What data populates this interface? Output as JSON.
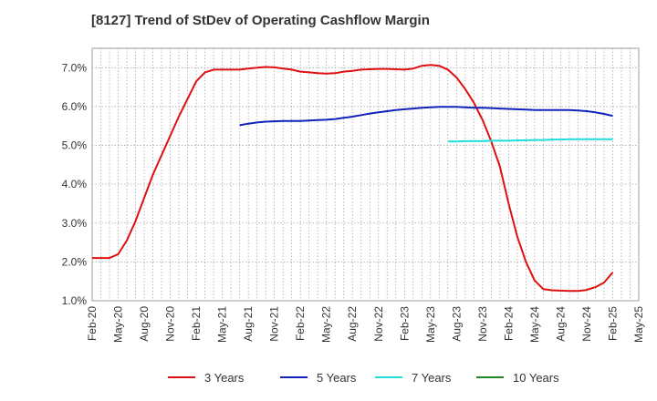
{
  "chart_data": {
    "type": "line",
    "title": "[8127]  Trend of StDev of Operating Cashflow Margin",
    "xlabel": "",
    "ylabel": "",
    "ylim": [
      1.0,
      7.5
    ],
    "yticks": [
      "1.0%",
      "2.0%",
      "3.0%",
      "4.0%",
      "5.0%",
      "6.0%",
      "7.0%"
    ],
    "x_ticks": [
      "Feb-20",
      "May-20",
      "Aug-20",
      "Nov-20",
      "Feb-21",
      "May-21",
      "Aug-21",
      "Nov-21",
      "Feb-22",
      "May-22",
      "Aug-22",
      "Nov-22",
      "Feb-23",
      "May-23",
      "Aug-23",
      "Nov-23",
      "Feb-24",
      "May-24",
      "Aug-24",
      "Nov-24",
      "Feb-25",
      "May-25"
    ],
    "grid": true,
    "legend_position": "bottom",
    "series": [
      {
        "name": "3 Years",
        "color": "#dd1111",
        "points": [
          [
            "Feb-20",
            2.1
          ],
          [
            "Mar-20",
            2.1
          ],
          [
            "Apr-20",
            2.1
          ],
          [
            "May-20",
            2.2
          ],
          [
            "Jun-20",
            2.55
          ],
          [
            "Jul-20",
            3.05
          ],
          [
            "Aug-20",
            3.65
          ],
          [
            "Sep-20",
            4.25
          ],
          [
            "Oct-20",
            4.75
          ],
          [
            "Nov-20",
            5.25
          ],
          [
            "Dec-20",
            5.75
          ],
          [
            "Jan-21",
            6.2
          ],
          [
            "Feb-21",
            6.65
          ],
          [
            "Mar-21",
            6.88
          ],
          [
            "Apr-21",
            6.95
          ],
          [
            "May-21",
            6.95
          ],
          [
            "Jun-21",
            6.95
          ],
          [
            "Jul-21",
            6.95
          ],
          [
            "Aug-21",
            6.98
          ],
          [
            "Sep-21",
            7.0
          ],
          [
            "Oct-21",
            7.02
          ],
          [
            "Nov-21",
            7.01
          ],
          [
            "Dec-21",
            6.98
          ],
          [
            "Jan-22",
            6.95
          ],
          [
            "Feb-22",
            6.9
          ],
          [
            "Mar-22",
            6.88
          ],
          [
            "Apr-22",
            6.86
          ],
          [
            "May-22",
            6.85
          ],
          [
            "Jun-22",
            6.86
          ],
          [
            "Jul-22",
            6.9
          ],
          [
            "Aug-22",
            6.92
          ],
          [
            "Sep-22",
            6.95
          ],
          [
            "Oct-22",
            6.96
          ],
          [
            "Nov-22",
            6.97
          ],
          [
            "Dec-22",
            6.97
          ],
          [
            "Jan-23",
            6.96
          ],
          [
            "Feb-23",
            6.95
          ],
          [
            "Mar-23",
            6.98
          ],
          [
            "Apr-23",
            7.05
          ],
          [
            "May-23",
            7.07
          ],
          [
            "Jun-23",
            7.05
          ],
          [
            "Jul-23",
            6.95
          ],
          [
            "Aug-23",
            6.75
          ],
          [
            "Sep-23",
            6.45
          ],
          [
            "Oct-23",
            6.1
          ],
          [
            "Nov-23",
            5.65
          ],
          [
            "Dec-23",
            5.1
          ],
          [
            "Jan-24",
            4.45
          ],
          [
            "Feb-24",
            3.5
          ],
          [
            "Mar-24",
            2.65
          ],
          [
            "Apr-24",
            2.0
          ],
          [
            "May-24",
            1.52
          ],
          [
            "Jun-24",
            1.3
          ],
          [
            "Jul-24",
            1.27
          ],
          [
            "Aug-24",
            1.26
          ],
          [
            "Sep-24",
            1.25
          ],
          [
            "Oct-24",
            1.25
          ],
          [
            "Nov-24",
            1.28
          ],
          [
            "Dec-24",
            1.35
          ],
          [
            "Jan-25",
            1.47
          ],
          [
            "Feb-25",
            1.73
          ]
        ]
      },
      {
        "name": "5 Years",
        "color": "#1122bb",
        "points": [
          [
            "Jul-21",
            5.52
          ],
          [
            "Aug-21",
            5.56
          ],
          [
            "Sep-21",
            5.59
          ],
          [
            "Oct-21",
            5.61
          ],
          [
            "Nov-21",
            5.62
          ],
          [
            "Dec-21",
            5.63
          ],
          [
            "Jan-22",
            5.63
          ],
          [
            "Feb-22",
            5.63
          ],
          [
            "Mar-22",
            5.64
          ],
          [
            "Apr-22",
            5.65
          ],
          [
            "May-22",
            5.66
          ],
          [
            "Jun-22",
            5.68
          ],
          [
            "Jul-22",
            5.71
          ],
          [
            "Aug-22",
            5.74
          ],
          [
            "Sep-22",
            5.78
          ],
          [
            "Oct-22",
            5.82
          ],
          [
            "Nov-22",
            5.85
          ],
          [
            "Dec-22",
            5.88
          ],
          [
            "Jan-23",
            5.91
          ],
          [
            "Feb-23",
            5.93
          ],
          [
            "Mar-23",
            5.95
          ],
          [
            "Apr-23",
            5.97
          ],
          [
            "May-23",
            5.98
          ],
          [
            "Jun-23",
            5.99
          ],
          [
            "Jul-23",
            5.99
          ],
          [
            "Aug-23",
            5.99
          ],
          [
            "Sep-23",
            5.98
          ],
          [
            "Oct-23",
            5.97
          ],
          [
            "Nov-23",
            5.97
          ],
          [
            "Dec-23",
            5.96
          ],
          [
            "Jan-24",
            5.95
          ],
          [
            "Feb-24",
            5.94
          ],
          [
            "Mar-24",
            5.93
          ],
          [
            "Apr-24",
            5.92
          ],
          [
            "May-24",
            5.91
          ],
          [
            "Jun-24",
            5.91
          ],
          [
            "Jul-24",
            5.91
          ],
          [
            "Aug-24",
            5.91
          ],
          [
            "Sep-24",
            5.91
          ],
          [
            "Oct-24",
            5.9
          ],
          [
            "Nov-24",
            5.88
          ],
          [
            "Dec-24",
            5.85
          ],
          [
            "Jan-25",
            5.81
          ],
          [
            "Feb-25",
            5.76
          ]
        ]
      },
      {
        "name": "7 Years",
        "color": "#22dddd",
        "points": [
          [
            "Jul-23",
            5.1
          ],
          [
            "Aug-23",
            5.1
          ],
          [
            "Sep-23",
            5.11
          ],
          [
            "Oct-23",
            5.11
          ],
          [
            "Nov-23",
            5.11
          ],
          [
            "Dec-23",
            5.12
          ],
          [
            "Jan-24",
            5.12
          ],
          [
            "Feb-24",
            5.12
          ],
          [
            "Mar-24",
            5.13
          ],
          [
            "Apr-24",
            5.13
          ],
          [
            "May-24",
            5.14
          ],
          [
            "Jun-24",
            5.14
          ],
          [
            "Jul-24",
            5.15
          ],
          [
            "Aug-24",
            5.15
          ],
          [
            "Sep-24",
            5.16
          ],
          [
            "Oct-24",
            5.16
          ],
          [
            "Nov-24",
            5.16
          ],
          [
            "Dec-24",
            5.16
          ],
          [
            "Jan-25",
            5.16
          ],
          [
            "Feb-25",
            5.16
          ]
        ]
      },
      {
        "name": "10 Years",
        "color": "#228822",
        "points": []
      }
    ]
  }
}
